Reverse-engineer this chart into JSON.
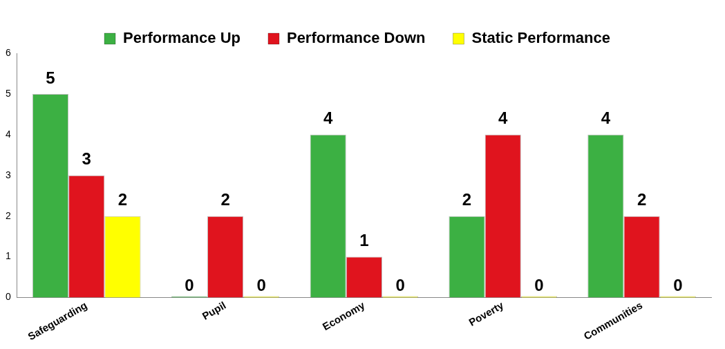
{
  "chart_data": {
    "type": "bar",
    "categories": [
      "Safeguarding",
      "Pupil",
      "Economy",
      "Poverty",
      "Communities"
    ],
    "series": [
      {
        "name": "Performance Up",
        "color": "#3cb043",
        "values": [
          5,
          0,
          4,
          2,
          4
        ]
      },
      {
        "name": "Performance Down",
        "color": "#e0141e",
        "values": [
          3,
          2,
          1,
          4,
          2
        ]
      },
      {
        "name": "Static Performance",
        "color": "#ffff00",
        "values": [
          2,
          0,
          0,
          0,
          0
        ]
      }
    ],
    "ylim": [
      0,
      6
    ],
    "yticks": [
      0,
      1,
      2,
      3,
      4,
      5,
      6
    ],
    "grid": false,
    "legend": "top",
    "data_labels": true
  }
}
